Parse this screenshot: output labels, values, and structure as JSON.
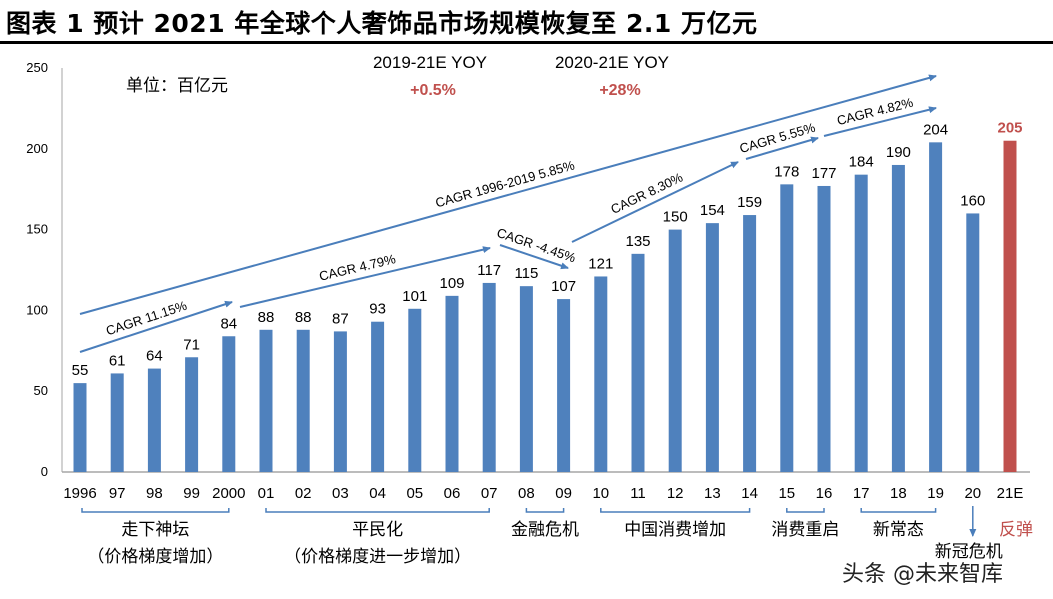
{
  "title": "图表 1 预计 2021 年全球个人奢饰品市场规模恢复至 2.1 万亿元",
  "watermark": "头条 @未来智库",
  "chart_data": {
    "type": "bar",
    "title": "图表 1 预计 2021 年全球个人奢饰品市场规模恢复至 2.1 万亿元",
    "unit_label": "单位：百亿元",
    "xlabel": "",
    "ylabel": "",
    "ylim": [
      0,
      250
    ],
    "yticks": [
      0,
      50,
      100,
      150,
      200,
      250
    ],
    "grid": false,
    "categories": [
      "1996",
      "97",
      "98",
      "99",
      "2000",
      "01",
      "02",
      "03",
      "04",
      "05",
      "06",
      "07",
      "08",
      "09",
      "10",
      "11",
      "12",
      "13",
      "14",
      "15",
      "16",
      "17",
      "18",
      "19",
      "20",
      "21E"
    ],
    "values": [
      55,
      61,
      64,
      71,
      84,
      88,
      88,
      87,
      93,
      101,
      109,
      117,
      115,
      107,
      121,
      135,
      150,
      154,
      159,
      178,
      177,
      184,
      190,
      204,
      160,
      205
    ],
    "colors": {
      "default": "#4f81bd",
      "highlight": "#c0504d",
      "arrow": "#4a7ebb"
    },
    "highlight_index": 25,
    "yoy": [
      {
        "label": "2019-21E YOY",
        "value": "+0.5%"
      },
      {
        "label": "2020-21E YOY",
        "value": "+28%"
      }
    ],
    "cagr_annotations": [
      {
        "label": "CAGR 1996-2019  5.85%",
        "from": "1996",
        "to": "19"
      },
      {
        "label": "CAGR 11.15%",
        "from": "1996",
        "to": "2000"
      },
      {
        "label": "CAGR 4.79%",
        "from": "2000",
        "to": "07"
      },
      {
        "label": "CAGR -4.45%",
        "from": "07",
        "to": "09"
      },
      {
        "label": "CAGR 8.30%",
        "from": "09",
        "to": "14"
      },
      {
        "label": "CAGR 5.55%",
        "from": "14",
        "to": "16"
      },
      {
        "label": "CAGR 4.82%",
        "from": "16",
        "to": "19"
      }
    ],
    "periods": [
      {
        "from": "1996",
        "to": "2000",
        "label": "走下神坛",
        "sublabel": "（价格梯度增加）"
      },
      {
        "from": "01",
        "to": "07",
        "label": "平民化",
        "sublabel": "（价格梯度进一步增加）"
      },
      {
        "from": "08",
        "to": "09",
        "label": "金融危机"
      },
      {
        "from": "10",
        "to": "14",
        "label": "中国消费增加"
      },
      {
        "from": "15",
        "to": "16",
        "label": "消费重启"
      },
      {
        "from": "17",
        "to": "19",
        "label": "新常态"
      },
      {
        "at": "20",
        "label": "新冠危机",
        "marker": "down-arrow"
      },
      {
        "at": "21E",
        "label": "反弹",
        "highlight": true
      }
    ]
  }
}
